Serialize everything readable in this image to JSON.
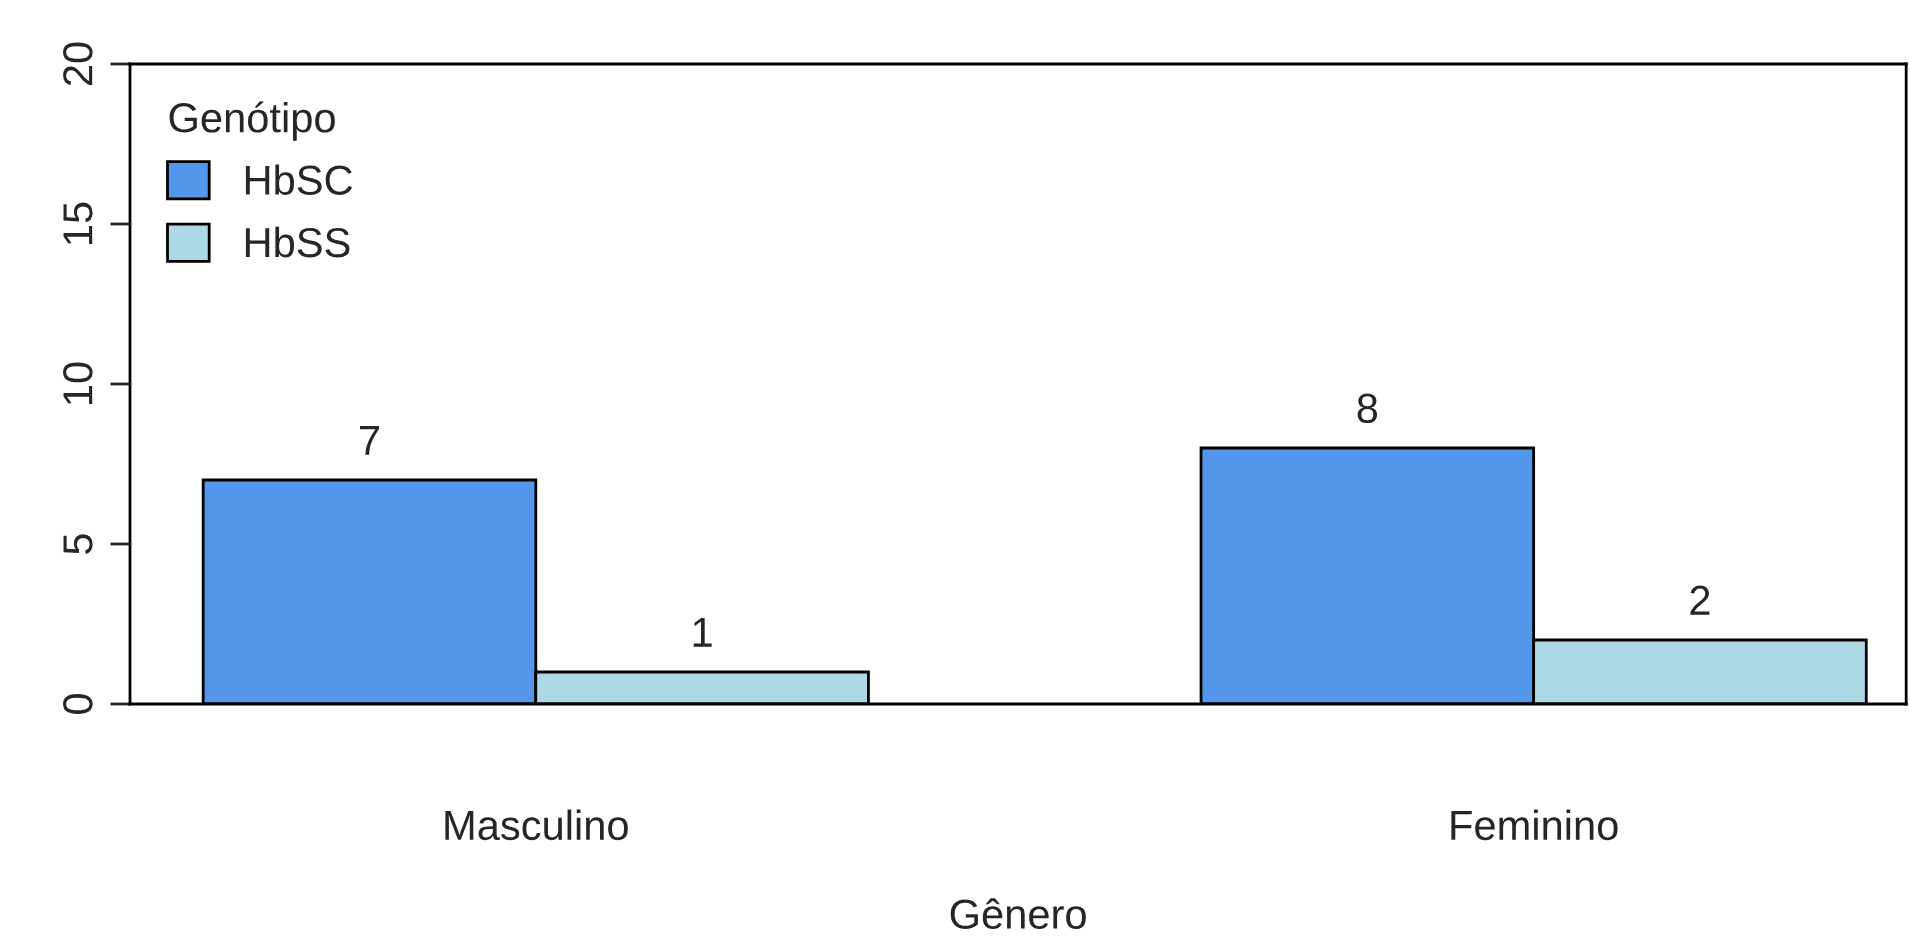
{
  "chart_data": {
    "type": "bar",
    "xlabel": "Gênero",
    "legend_title": "Genótipo",
    "categories": [
      "Masculino",
      "Feminino"
    ],
    "series": [
      {
        "name": "HbSC",
        "color": "#5496ea",
        "values": [
          7,
          8
        ]
      },
      {
        "name": "HbSS",
        "color": "#add8e6",
        "values": [
          1,
          2
        ]
      }
    ],
    "ylim": [
      0,
      20
    ],
    "yticks": [
      0,
      5,
      10,
      15,
      20
    ],
    "data_labels": true,
    "legend": "top left",
    "grid": false
  }
}
